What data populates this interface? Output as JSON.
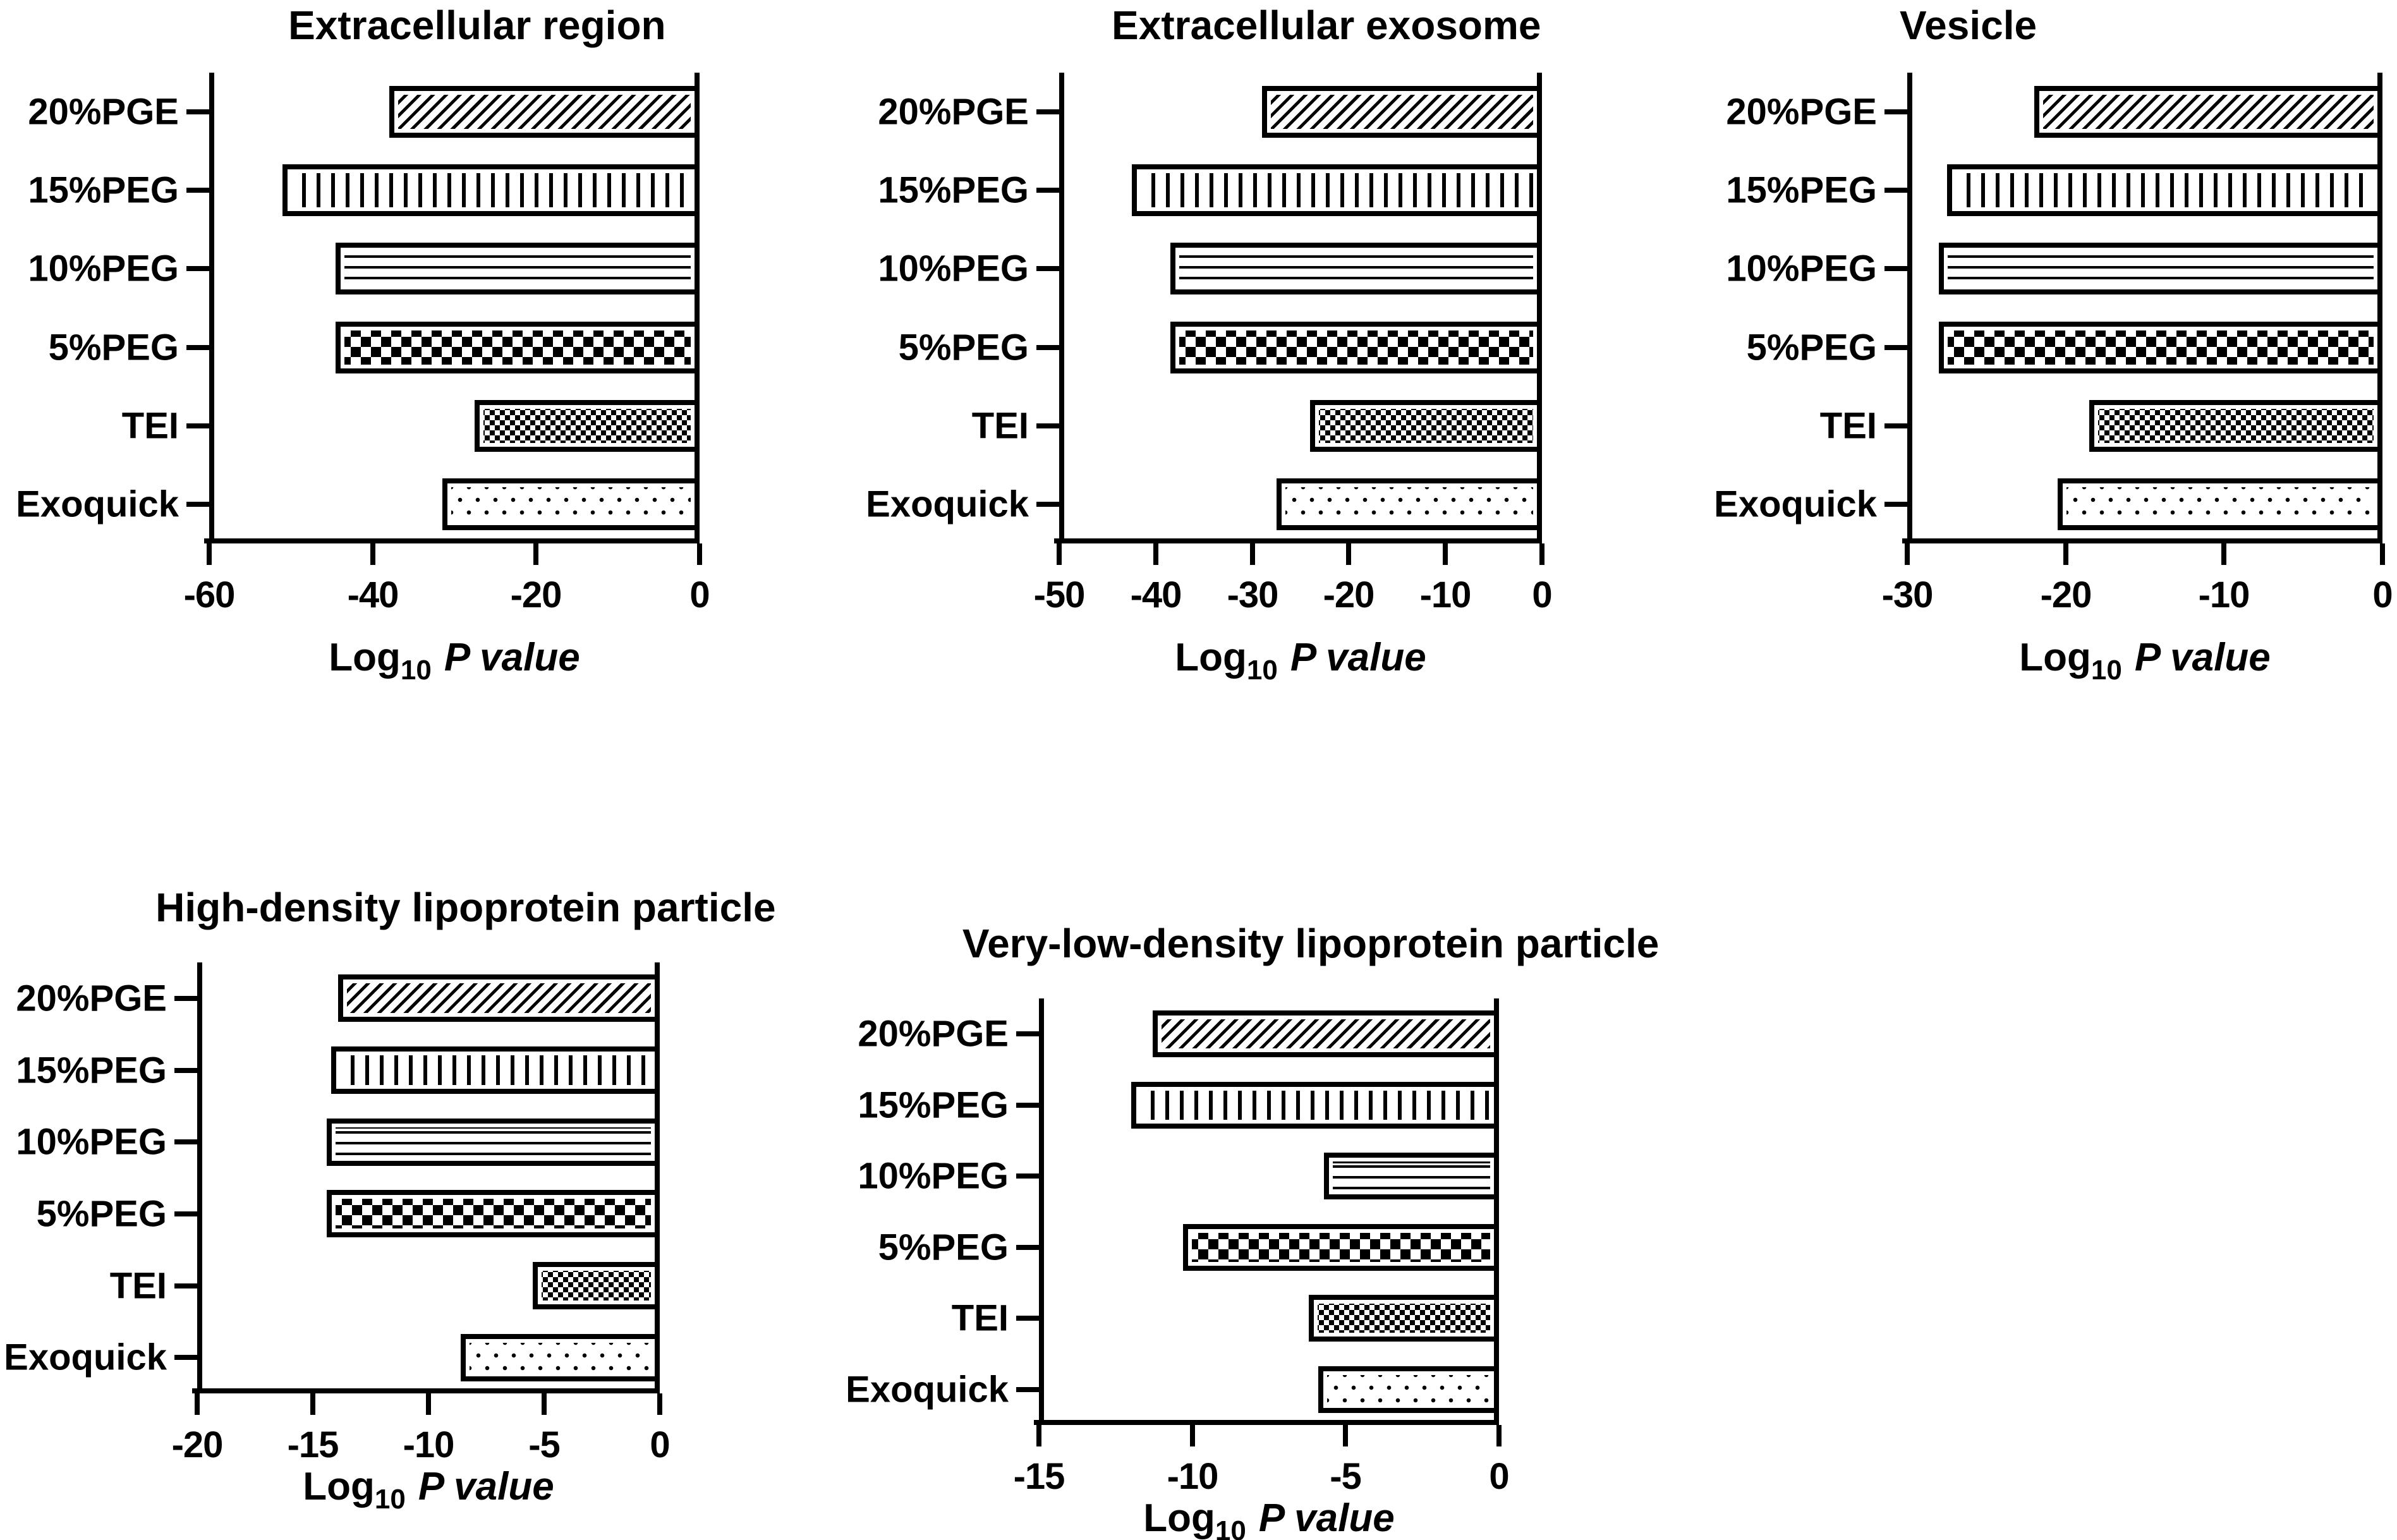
{
  "figure": {
    "background_color": "#ffffff",
    "foreground_color": "#000000",
    "categories": [
      "20%PGE",
      "15%PEG",
      "10%PEG",
      "5%PEG",
      "TEI",
      "Exoquick"
    ],
    "axis_label": {
      "prefix": "Log",
      "subscript": "10",
      "suffix": "P value"
    },
    "patterns": {
      "20%PGE": "diagonal-hatch",
      "15%PEG": "vertical-stripes",
      "10%PEG": "horizontal-stripes",
      "5%PEG": "checkerboard-large",
      "TEI": "checkerboard-fine",
      "Exoquick": "dots"
    }
  },
  "chart_data": [
    {
      "type": "bar",
      "orientation": "horizontal",
      "title": "Extracellular region",
      "xlabel": "Log10 P value",
      "categories": [
        "20%PGE",
        "15%PEG",
        "10%PEG",
        "5%PEG",
        "TEI",
        "Exoquick"
      ],
      "values": [
        -38,
        -51,
        -44.5,
        -44.5,
        -27.5,
        -31.5
      ],
      "xlim": [
        -60,
        0
      ],
      "xticks": [
        -60,
        -40,
        -20,
        0
      ],
      "grid": false,
      "legend": "none"
    },
    {
      "type": "bar",
      "orientation": "horizontal",
      "title": "Extracellular exosome",
      "xlabel": "Log10 P value",
      "categories": [
        "20%PGE",
        "15%PEG",
        "10%PEG",
        "5%PEG",
        "TEI",
        "Exoquick"
      ],
      "values": [
        -29,
        -42.5,
        -38.5,
        -38.5,
        -24,
        -27.5
      ],
      "xlim": [
        -50,
        0
      ],
      "xticks": [
        -50,
        -40,
        -30,
        -20,
        -10,
        0
      ],
      "grid": false,
      "legend": "none"
    },
    {
      "type": "bar",
      "orientation": "horizontal",
      "title": "Vesicle",
      "xlabel": "Log10 P value",
      "categories": [
        "20%PGE",
        "15%PEG",
        "10%PEG",
        "5%PEG",
        "TEI",
        "Exoquick"
      ],
      "values": [
        -22,
        -27.5,
        -28,
        -28,
        -18.5,
        -20.5
      ],
      "xlim": [
        -30,
        0
      ],
      "xticks": [
        -30,
        -20,
        -10,
        0
      ],
      "grid": false,
      "legend": "none"
    },
    {
      "type": "bar",
      "orientation": "horizontal",
      "title": "High-density lipoprotein particle",
      "xlabel": "Log10 P value",
      "categories": [
        "20%PGE",
        "15%PEG",
        "10%PEG",
        "5%PEG",
        "TEI",
        "Exoquick"
      ],
      "values": [
        -13.9,
        -14.2,
        -14.4,
        -14.4,
        -5.5,
        -8.6
      ],
      "xlim": [
        -20,
        0
      ],
      "xticks": [
        -20,
        -15,
        -10,
        -5,
        0
      ],
      "grid": false,
      "legend": "none"
    },
    {
      "type": "bar",
      "orientation": "horizontal",
      "title": "Very-low-density lipoprotein particle",
      "xlabel": "Log10 P value",
      "categories": [
        "20%PGE",
        "15%PEG",
        "10%PEG",
        "5%PEG",
        "TEI",
        "Exoquick"
      ],
      "values": [
        -11.3,
        -12,
        -5.7,
        -10.3,
        -6.2,
        -5.9
      ],
      "xlim": [
        -15,
        0
      ],
      "xticks": [
        -15,
        -10,
        -5,
        0
      ],
      "grid": false,
      "legend": "none"
    }
  ]
}
